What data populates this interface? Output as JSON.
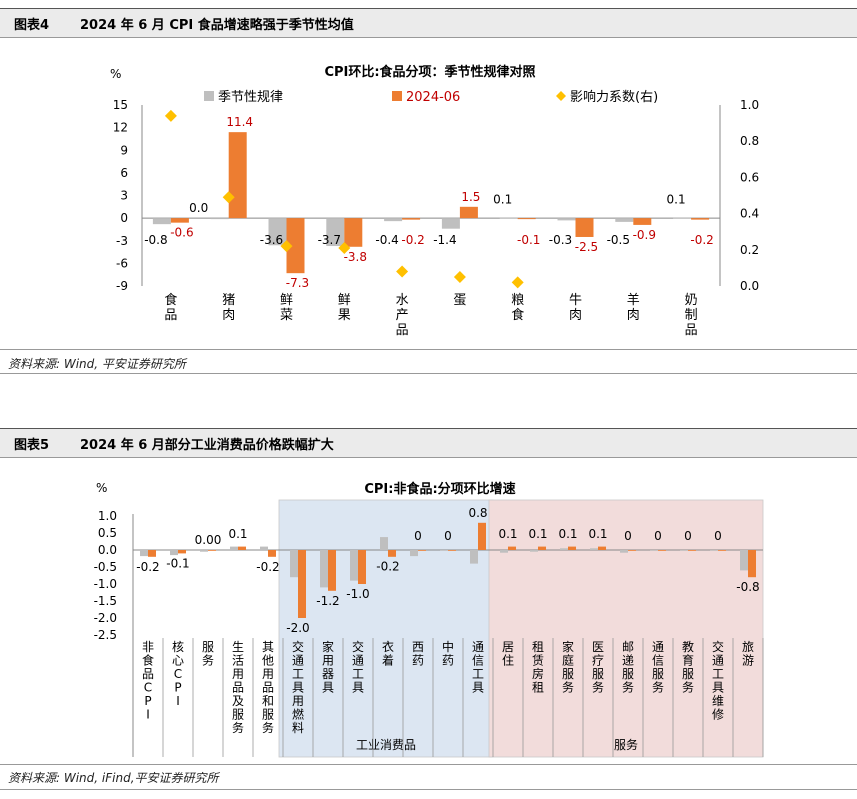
{
  "figure4": {
    "number": "图表4",
    "title": "2024 年 6 月 CPI 食品增速略强于季节性均值",
    "source": "资料来源: Wind, 平安证券研究所"
  },
  "figure5": {
    "number": "图表5",
    "title": "2024 年 6 月部分工业消费品价格跌幅扩大",
    "source": "资料来源: Wind, iFind,平安证券研究所"
  },
  "chart_data": [
    {
      "type": "bar",
      "title": "CPI环比:食品分项：季节性规律对照",
      "ylabel": "%",
      "ylim": [
        -9,
        15
      ],
      "yticks": [
        -9,
        -6,
        -3,
        0,
        3,
        6,
        9,
        12,
        15
      ],
      "y2lim": [
        0,
        1.0
      ],
      "y2ticks": [
        "0.0",
        "0.2",
        "0.4",
        "0.6",
        "0.8",
        "1.0"
      ],
      "legend_position": "top",
      "categories": [
        "食品",
        "猪肉",
        "鲜菜",
        "鲜果",
        "水产品",
        "蛋",
        "粮食",
        "牛肉",
        "羊肉",
        "奶制品"
      ],
      "series": [
        {
          "name": "季节性规律",
          "color": "#bfbfbf",
          "values": [
            -0.8,
            0.0,
            -3.6,
            -3.7,
            -0.4,
            -1.4,
            0.1,
            -0.3,
            -0.5,
            0.1
          ],
          "labels": [
            "-0.8",
            "0.0",
            "-3.6",
            "-3.7",
            "-0.4",
            "-1.4",
            "0.1",
            "-0.3",
            "-0.5",
            "0.1"
          ]
        },
        {
          "name": "2024-06",
          "color": "#ed7d31",
          "values": [
            -0.6,
            11.4,
            -7.3,
            -3.8,
            -0.2,
            1.5,
            -0.1,
            -2.5,
            -0.9,
            -0.2
          ],
          "labels": [
            "-0.6",
            "11.4",
            "-7.3",
            "-3.8",
            "-0.2",
            "1.5",
            "-0.1",
            "-2.5",
            "-0.9",
            "-0.2"
          ]
        },
        {
          "name": "影响力系数(右)",
          "color": "#ffc000",
          "axis": "right",
          "values": [
            0.94,
            0.49,
            0.22,
            0.21,
            0.08,
            0.05,
            0.02,
            null,
            null,
            null
          ]
        }
      ]
    },
    {
      "type": "bar",
      "title": "CPI:非食品:分项环比增速",
      "ylabel": "%",
      "ylim": [
        -2.5,
        1.0
      ],
      "yticks": [
        "1.0",
        "0.5",
        "0.0",
        "-0.5",
        "-1.0",
        "-1.5",
        "-2.0",
        "-2.5"
      ],
      "categories": [
        "非食品CPI",
        "核心CPI",
        "服务",
        "生活用品及服务",
        "其他用品和服务",
        "交通工具用燃料",
        "家用器具",
        "交通工具",
        "衣着",
        "西药",
        "中药",
        "通信工具",
        "居住",
        "租赁房租",
        "家庭服务",
        "医疗服务",
        "邮递服务",
        "通信服务",
        "教育服务",
        "交通工具维修",
        "旅游"
      ],
      "groups": [
        {
          "name": "工业消费品",
          "color": "#dce6f2",
          "from": 5,
          "to": 11
        },
        {
          "name": "服务",
          "color": "#f2dcdb",
          "from": 12,
          "to": 20
        }
      ],
      "series": [
        {
          "name": "",
          "color": "#bfbfbf",
          "values": [
            -0.18,
            -0.15,
            -0.05,
            0.1,
            0.1,
            -0.8,
            -1.1,
            -0.9,
            0.38,
            -0.18,
            0.0,
            -0.4,
            -0.08,
            -0.05,
            0.05,
            0.05,
            -0.08,
            0.0,
            0.0,
            0.0,
            -0.6
          ]
        },
        {
          "name": "",
          "color": "#ed7d31",
          "values": [
            -0.2,
            -0.1,
            0.0,
            0.1,
            -0.2,
            -2.0,
            -1.2,
            -1.0,
            -0.2,
            0.0,
            0.0,
            0.8,
            0.1,
            0.1,
            0.1,
            0.1,
            0.0,
            0.0,
            0.0,
            0.0,
            -0.8
          ],
          "labels": [
            "-0.2",
            "-0.1",
            "0.00",
            "0.1",
            "-0.2",
            "-2.0",
            "-1.2",
            "-1.0",
            "-0.2",
            "0",
            "0",
            "0.8",
            "0.1",
            "0.1",
            "0.1",
            "0.1",
            "0",
            "0",
            "0",
            "0",
            "-0.8"
          ]
        }
      ]
    }
  ]
}
